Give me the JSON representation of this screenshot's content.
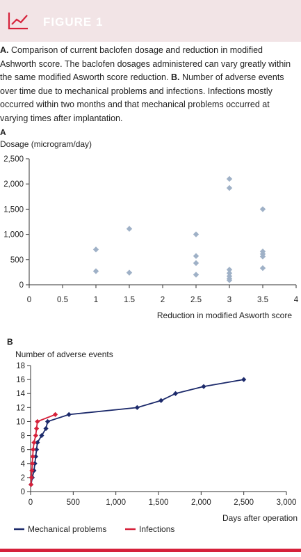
{
  "figure": {
    "label": "FIGURE 1",
    "accent_color": "#d6213a",
    "header_color": "#f2e4e6",
    "header_icon": "line-chart-icon"
  },
  "caption": {
    "part1_label": "A.",
    "part1_text": " Comparison of current baclofen dosage and reduction in modified Ashworth score. The baclofen dosages administered can vary greatly within the same modified Asworth score reduction. ",
    "part2_label": "B.",
    "part2_text": " Number of adverse events over time due to mechanical problems and infections. Infections mostly occurred within two months and that mechanical problems occurred at varying times after implantation."
  },
  "chart_data": [
    {
      "panel": "A",
      "type": "scatter",
      "ylabel": "Dosage (microgram/day)",
      "xlabel": "Reduction in modified Asworth score",
      "xlim": [
        0,
        4
      ],
      "ylim": [
        0,
        2500
      ],
      "x_ticks": [
        "0",
        "0.5",
        "1",
        "1.5",
        "2",
        "2.5",
        "3",
        "3.5",
        "4"
      ],
      "y_ticks": [
        "0",
        "500",
        "1,000",
        "1,500",
        "2,000",
        "2,500"
      ],
      "marker_color": "#9fb1c7",
      "points": [
        {
          "x": 1,
          "y": 700
        },
        {
          "x": 1,
          "y": 270
        },
        {
          "x": 1.5,
          "y": 1110
        },
        {
          "x": 1.5,
          "y": 240
        },
        {
          "x": 2.5,
          "y": 1000
        },
        {
          "x": 2.5,
          "y": 570
        },
        {
          "x": 2.5,
          "y": 430
        },
        {
          "x": 2.5,
          "y": 200
        },
        {
          "x": 3,
          "y": 2100
        },
        {
          "x": 3,
          "y": 1920
        },
        {
          "x": 3,
          "y": 300
        },
        {
          "x": 3,
          "y": 230
        },
        {
          "x": 3,
          "y": 170
        },
        {
          "x": 3,
          "y": 120
        },
        {
          "x": 3,
          "y": 90
        },
        {
          "x": 3.5,
          "y": 1500
        },
        {
          "x": 3.5,
          "y": 660
        },
        {
          "x": 3.5,
          "y": 610
        },
        {
          "x": 3.5,
          "y": 560
        },
        {
          "x": 3.5,
          "y": 330
        }
      ]
    },
    {
      "panel": "B",
      "type": "line",
      "ylabel": "Number of adverse events",
      "xlabel": "Days after operation",
      "xlim": [
        0,
        3000
      ],
      "ylim": [
        0,
        18
      ],
      "x_ticks": [
        "0",
        "500",
        "1,000",
        "1,500",
        "2,000",
        "2,500",
        "3,000"
      ],
      "y_ticks": [
        "0",
        "2",
        "4",
        "6",
        "8",
        "10",
        "12",
        "14",
        "16",
        "18"
      ],
      "series": [
        {
          "name": "Mechanical problems",
          "color": "#1c2a6b",
          "points": [
            {
              "x": 5,
              "y": 1
            },
            {
              "x": 20,
              "y": 2
            },
            {
              "x": 40,
              "y": 3
            },
            {
              "x": 50,
              "y": 4
            },
            {
              "x": 60,
              "y": 5
            },
            {
              "x": 70,
              "y": 6
            },
            {
              "x": 80,
              "y": 7
            },
            {
              "x": 130,
              "y": 8
            },
            {
              "x": 180,
              "y": 9
            },
            {
              "x": 200,
              "y": 10
            },
            {
              "x": 450,
              "y": 11
            },
            {
              "x": 1250,
              "y": 12
            },
            {
              "x": 1530,
              "y": 13
            },
            {
              "x": 1700,
              "y": 14
            },
            {
              "x": 2030,
              "y": 15
            },
            {
              "x": 2500,
              "y": 16
            }
          ]
        },
        {
          "name": "Infections",
          "color": "#d6213a",
          "points": [
            {
              "x": 5,
              "y": 1
            },
            {
              "x": 10,
              "y": 2
            },
            {
              "x": 15,
              "y": 3
            },
            {
              "x": 20,
              "y": 4
            },
            {
              "x": 25,
              "y": 5
            },
            {
              "x": 30,
              "y": 6
            },
            {
              "x": 40,
              "y": 7
            },
            {
              "x": 60,
              "y": 8
            },
            {
              "x": 70,
              "y": 9
            },
            {
              "x": 80,
              "y": 10
            },
            {
              "x": 290,
              "y": 11
            }
          ]
        }
      ]
    }
  ]
}
